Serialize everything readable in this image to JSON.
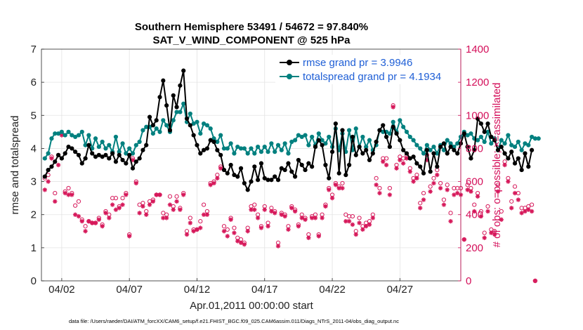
{
  "chart_data": {
    "type": "line",
    "title_line1": "Southern Hemisphere 53491 / 54672 = 97.840%",
    "title_line2": "SAT_V_WIND_COMPONENT @ 525 hPa",
    "xlabel": "Apr.01,2011 00:00:00 start",
    "ylabel_left": "rmse and totalspread",
    "ylabel_right": "# of obs: o=possible; ×=assimilated",
    "xlim": [
      0.5,
      31.5
    ],
    "ylim_left": [
      0,
      7
    ],
    "ylim_right": [
      0,
      1400
    ],
    "x_ticks": [
      {
        "x": 2,
        "label": "04/02"
      },
      {
        "x": 7,
        "label": "04/07"
      },
      {
        "x": 12,
        "label": "04/12"
      },
      {
        "x": 17,
        "label": "04/17"
      },
      {
        "x": 22,
        "label": "04/22"
      },
      {
        "x": 27,
        "label": "04/27"
      }
    ],
    "y_ticks_left": [
      "0",
      "1",
      "2",
      "3",
      "4",
      "5",
      "6",
      "7"
    ],
    "y_ticks_right": [
      "0",
      "200",
      "400",
      "600",
      "800",
      "1000",
      "1200",
      "1400"
    ],
    "grid": true,
    "legend_position": "top-right",
    "x_start": 0.75,
    "x_step": 0.25,
    "series": [
      {
        "name": "rmse grand pr = 3.9946",
        "axis": "left",
        "color": "#000000",
        "values": [
          3.15,
          3.35,
          3.45,
          3.6,
          3.8,
          3.7,
          3.85,
          4.05,
          4.0,
          3.9,
          3.8,
          3.55,
          3.7,
          4.1,
          3.85,
          3.75,
          3.8,
          3.75,
          3.8,
          3.7,
          3.85,
          3.6,
          3.8,
          3.65,
          3.55,
          3.8,
          3.4,
          3.6,
          3.7,
          3.95,
          4.1,
          4.95,
          4.7,
          4.85,
          5.55,
          6.05,
          5.3,
          4.55,
          5.6,
          5.25,
          5.9,
          6.35,
          4.9,
          4.7,
          4.4,
          4.1,
          3.85,
          3.95,
          4.0,
          4.25,
          4.2,
          3.95,
          3.8,
          3.35,
          3.25,
          3.5,
          3.2,
          3.15,
          3.4,
          2.95,
          2.75,
          3.0,
          3.45,
          3.05,
          3.55,
          3.1,
          3.05,
          3.05,
          3.15,
          3.05,
          3.4,
          3.35,
          3.55,
          3.3,
          3.15,
          3.65,
          3.5,
          3.35,
          3.55,
          3.45,
          4.05,
          4.25,
          4.1,
          3.5,
          3.1,
          3.9,
          4.75,
          3.25,
          4.55,
          3.2,
          3.5,
          4.35,
          3.8,
          4.05,
          3.85,
          3.95,
          3.65,
          3.85,
          4.2,
          4.55,
          4.7,
          4.35,
          4.05,
          4.65,
          4.45,
          4.25,
          3.95,
          3.85,
          3.7,
          3.75,
          3.55,
          3.45,
          3.25,
          3.95,
          3.3,
          3.85,
          3.45,
          4.05,
          4.15,
          3.85,
          4.05,
          3.95,
          3.85,
          4.15,
          4.45,
          4.05,
          3.7,
          3.95,
          4.9,
          4.75,
          4.5,
          4.75,
          4.35,
          4.25,
          3.95,
          4.05,
          3.85,
          3.7,
          3.9,
          3.55,
          3.7,
          3.35,
          3.85,
          3.45,
          3.95
        ]
      },
      {
        "name": "totalspread grand pr = 4.1934",
        "axis": "left",
        "color": "#00807f",
        "values": [
          3.7,
          3.85,
          4.3,
          4.45,
          4.45,
          4.5,
          4.4,
          4.5,
          4.4,
          4.35,
          4.4,
          4.5,
          4.1,
          4.4,
          4.0,
          4.3,
          4.05,
          4.2,
          4.0,
          4.1,
          3.9,
          4.35,
          3.9,
          4.15,
          3.85,
          4.0,
          3.85,
          4.1,
          4.2,
          4.55,
          4.65,
          4.65,
          4.45,
          4.6,
          4.5,
          4.85,
          4.7,
          4.5,
          4.85,
          5.1,
          5.1,
          5.35,
          4.8,
          5.05,
          4.75,
          4.8,
          4.45,
          4.75,
          4.7,
          4.6,
          4.3,
          4.2,
          4.4,
          4.0,
          4.0,
          4.15,
          3.85,
          4.05,
          4.0,
          4.0,
          3.85,
          4.0,
          3.85,
          4.05,
          3.9,
          4.05,
          3.9,
          4.15,
          3.9,
          4.1,
          3.95,
          4.15,
          3.85,
          4.2,
          4.25,
          4.4,
          4.35,
          4.4,
          4.1,
          4.35,
          4.1,
          4.45,
          4.25,
          4.15,
          4.35,
          4.05,
          4.6,
          3.95,
          4.45,
          3.9,
          4.55,
          3.95,
          4.6,
          4.05,
          4.35,
          4.05,
          4.25,
          3.95,
          4.1,
          4.55,
          4.5,
          4.5,
          4.45,
          4.8,
          4.5,
          4.85,
          4.65,
          4.5,
          4.35,
          4.25,
          4.1,
          4.0,
          3.85,
          4.1,
          3.95,
          4.05,
          3.85,
          4.1,
          3.95,
          4.25,
          4.15,
          4.05,
          4.15,
          4.35,
          4.5,
          4.4,
          4.45,
          4.3,
          4.25,
          4.35,
          4.2,
          4.5,
          4.15,
          4.3,
          3.95,
          4.25,
          4.15,
          4.4,
          4.1,
          4.05,
          4.2,
          3.95,
          4.15,
          4.1,
          4.35,
          4.3,
          4.3
        ]
      }
    ],
    "obs_series": {
      "name": "obs counts",
      "axis": "right",
      "color": "#d6185a",
      "possible": [
        620,
        640,
        750,
        530,
        760,
        890,
        540,
        560,
        530,
        455,
        480,
        370,
        330,
        360,
        350,
        350,
        380,
        340,
        420,
        400,
        500,
        500,
        450,
        500,
        530,
        280,
        740,
        600,
        460,
        470,
        420,
        480,
        490,
        520,
        520,
        410,
        400,
        510,
        450,
        510,
        440,
        530,
        300,
        380,
        310,
        310,
        360,
        460,
        420,
        590,
        600,
        640,
        690,
        330,
        310,
        380,
        320,
        260,
        250,
        230,
        320,
        450,
        460,
        400,
        330,
        450,
        350,
        440,
        420,
        230,
        410,
        400,
        330,
        450,
        430,
        340,
        400,
        380,
        280,
        390,
        400,
        280,
        400,
        460,
        560,
        520,
        590,
        570,
        590,
        400,
        390,
        390,
        300,
        380,
        330,
        350,
        360,
        400,
        620,
        560,
        740,
        740,
        560,
        1060,
        700,
        750,
        740,
        760,
        680,
        620,
        640,
        470,
        530,
        760,
        570,
        620,
        670,
        590,
        490,
        580,
        410,
        560,
        560,
        560,
        250,
        580,
        560,
        460,
        530,
        420,
        290,
        450,
        310,
        300,
        580,
        420,
        720,
        620,
        480,
        570,
        530,
        440,
        440,
        450,
        460,
        0
      ],
      "assimilated": [
        550,
        600,
        740,
        480,
        700,
        880,
        530,
        520,
        520,
        400,
        390,
        360,
        300,
        360,
        350,
        350,
        370,
        330,
        410,
        380,
        460,
        430,
        440,
        460,
        520,
        270,
        730,
        590,
        410,
        450,
        400,
        460,
        480,
        520,
        520,
        380,
        380,
        460,
        430,
        480,
        430,
        520,
        280,
        350,
        300,
        310,
        320,
        400,
        400,
        580,
        590,
        620,
        680,
        300,
        270,
        370,
        290,
        240,
        230,
        220,
        300,
        430,
        430,
        380,
        320,
        430,
        330,
        420,
        410,
        210,
        400,
        390,
        310,
        440,
        420,
        330,
        380,
        370,
        260,
        380,
        380,
        270,
        380,
        450,
        550,
        500,
        580,
        560,
        560,
        360,
        360,
        340,
        280,
        350,
        310,
        330,
        340,
        380,
        580,
        530,
        720,
        700,
        520,
        1050,
        680,
        730,
        710,
        740,
        660,
        600,
        620,
        440,
        490,
        730,
        540,
        590,
        640,
        560,
        460,
        550,
        360,
        520,
        530,
        520,
        250,
        550,
        540,
        420,
        510,
        390,
        260,
        420,
        290,
        280,
        540,
        370,
        700,
        600,
        440,
        530,
        490,
        410,
        420,
        430,
        420,
        0
      ]
    }
  },
  "footer": "data file: /Users/raeder/DAI/ATM_forcXX/CAM6_setup/f.e21.FHIST_BGC.f09_025.CAM6assim.011/Diags_NTrS_2011-04/obs_diag_output.nc"
}
